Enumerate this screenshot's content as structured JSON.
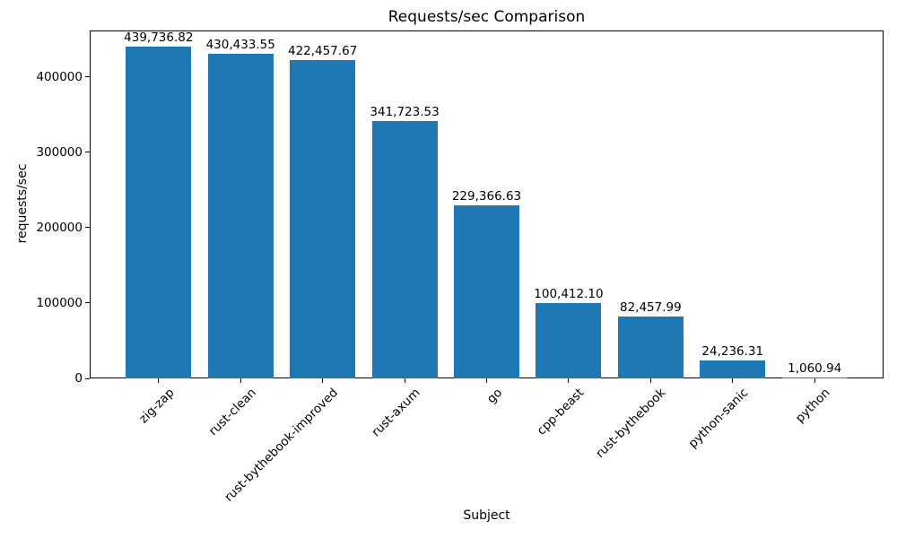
{
  "chart_data": {
    "type": "bar",
    "title": "Requests/sec Comparison",
    "xlabel": "Subject",
    "ylabel": "requests/sec",
    "categories": [
      "zig-zap",
      "rust-clean",
      "rust-bythebook-improved",
      "rust-axum",
      "go",
      "cpp-beast",
      "rust-bythebook",
      "python-sanic",
      "python"
    ],
    "values": [
      439736.82,
      430433.55,
      422457.67,
      341723.53,
      229366.63,
      100412.1,
      82457.99,
      24236.31,
      1060.94
    ],
    "value_labels": [
      "439,736.82",
      "430,433.55",
      "422,457.67",
      "341,723.53",
      "229,366.63",
      "100,412.10",
      "82,457.99",
      "24,236.31",
      "1,060.94"
    ],
    "bar_color": "#1f77b4",
    "axis_color": "#000000",
    "ylim": [
      0,
      461723.66
    ],
    "yticks": [
      0,
      100000,
      200000,
      300000,
      400000
    ],
    "ytick_labels": [
      "0",
      "100000",
      "200000",
      "300000",
      "400000"
    ],
    "grid": false,
    "legend_position": "none"
  }
}
